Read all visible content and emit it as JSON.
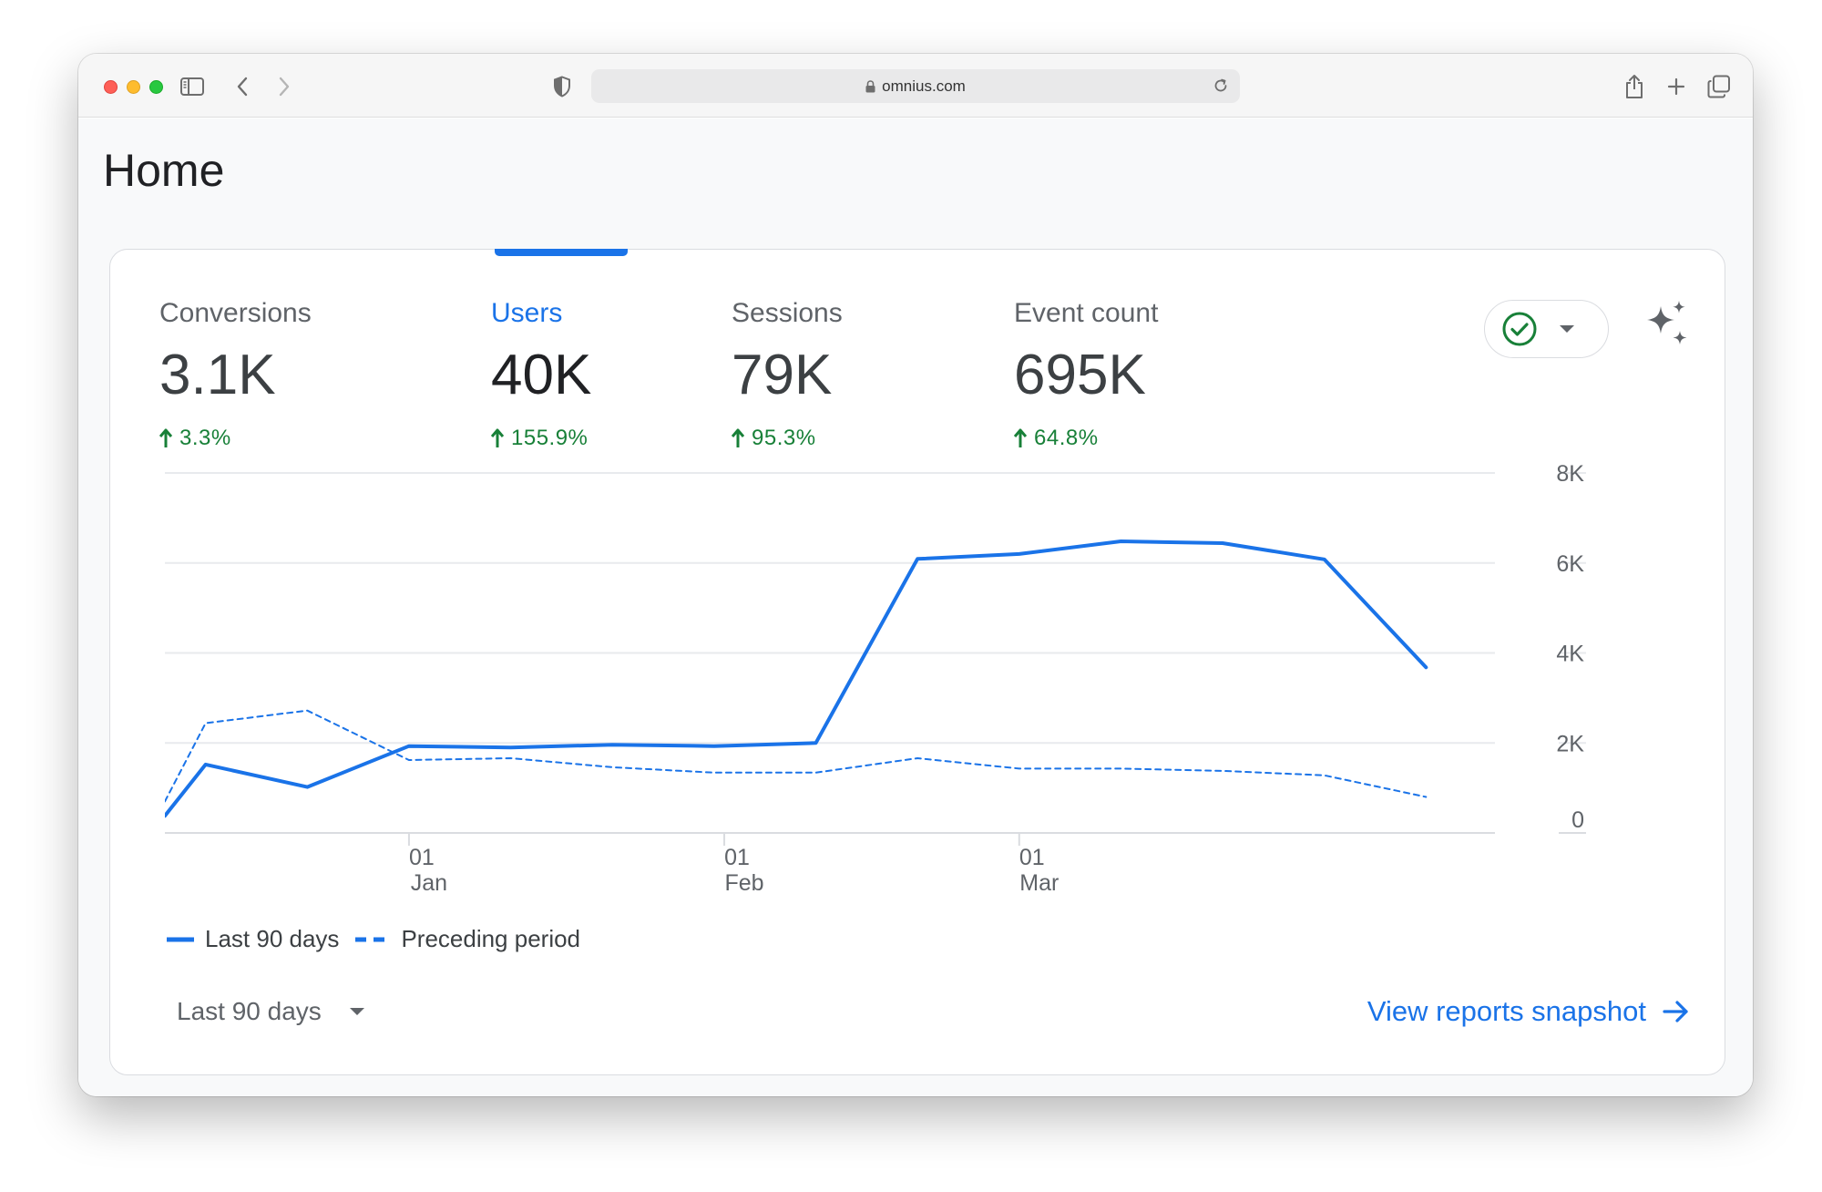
{
  "browser": {
    "url": "omnius.com",
    "icons": [
      "sidebar-icon",
      "back-chevron-icon",
      "forward-chevron-icon",
      "shield-icon",
      "lock-icon",
      "reload-icon",
      "share-icon",
      "new-tab-plus-icon",
      "tabs-overview-icon"
    ]
  },
  "page": {
    "title": "Home"
  },
  "metrics": [
    {
      "label": "Conversions",
      "value": "3.1K",
      "change": "3.3%"
    },
    {
      "label": "Users",
      "value": "40K",
      "change": "155.9%",
      "active": true
    },
    {
      "label": "Sessions",
      "value": "79K",
      "change": "95.3%"
    },
    {
      "label": "Event count",
      "value": "695K",
      "change": "64.8%"
    }
  ],
  "colors": {
    "accent": "#1a73e8",
    "positive": "#188038",
    "status_ok": "#188038"
  },
  "controls": {
    "status_icon": "check-circle-icon",
    "insights_icon": "sparkle-icon",
    "date_range": "Last 90 days",
    "snapshot_link": "View reports snapshot"
  },
  "chart_data": {
    "type": "line",
    "x": [
      "2023-12-08",
      "2023-12-12",
      "2023-12-22",
      "2024-01-01",
      "2024-01-11",
      "2024-01-21",
      "2024-01-31",
      "2024-02-10",
      "2024-02-20",
      "2024-03-01",
      "2024-03-11",
      "2024-03-21",
      "2024-03-31",
      "2024-04-10"
    ],
    "x_ticks": [
      {
        "date": "2024-01-01",
        "day": "01",
        "month": "Jan"
      },
      {
        "date": "2024-02-01",
        "day": "01",
        "month": "Feb"
      },
      {
        "date": "2024-03-01",
        "day": "01",
        "month": "Mar"
      }
    ],
    "y_ticks": [
      "0",
      "2K",
      "4K",
      "6K",
      "8K"
    ],
    "ylim": [
      0,
      8000
    ],
    "series": [
      {
        "name": "Last 90 days",
        "style": "solid",
        "values": [
          380,
          1520,
          1020,
          1930,
          1900,
          1960,
          1930,
          2000,
          6090,
          6200,
          6480,
          6440,
          6080,
          3680
        ]
      },
      {
        "name": "Preceding period",
        "style": "dashed",
        "values": [
          700,
          2440,
          2720,
          1620,
          1660,
          1460,
          1340,
          1340,
          1660,
          1430,
          1430,
          1380,
          1280,
          800
        ]
      }
    ],
    "grid": true,
    "legend_position": "bottom-left"
  }
}
